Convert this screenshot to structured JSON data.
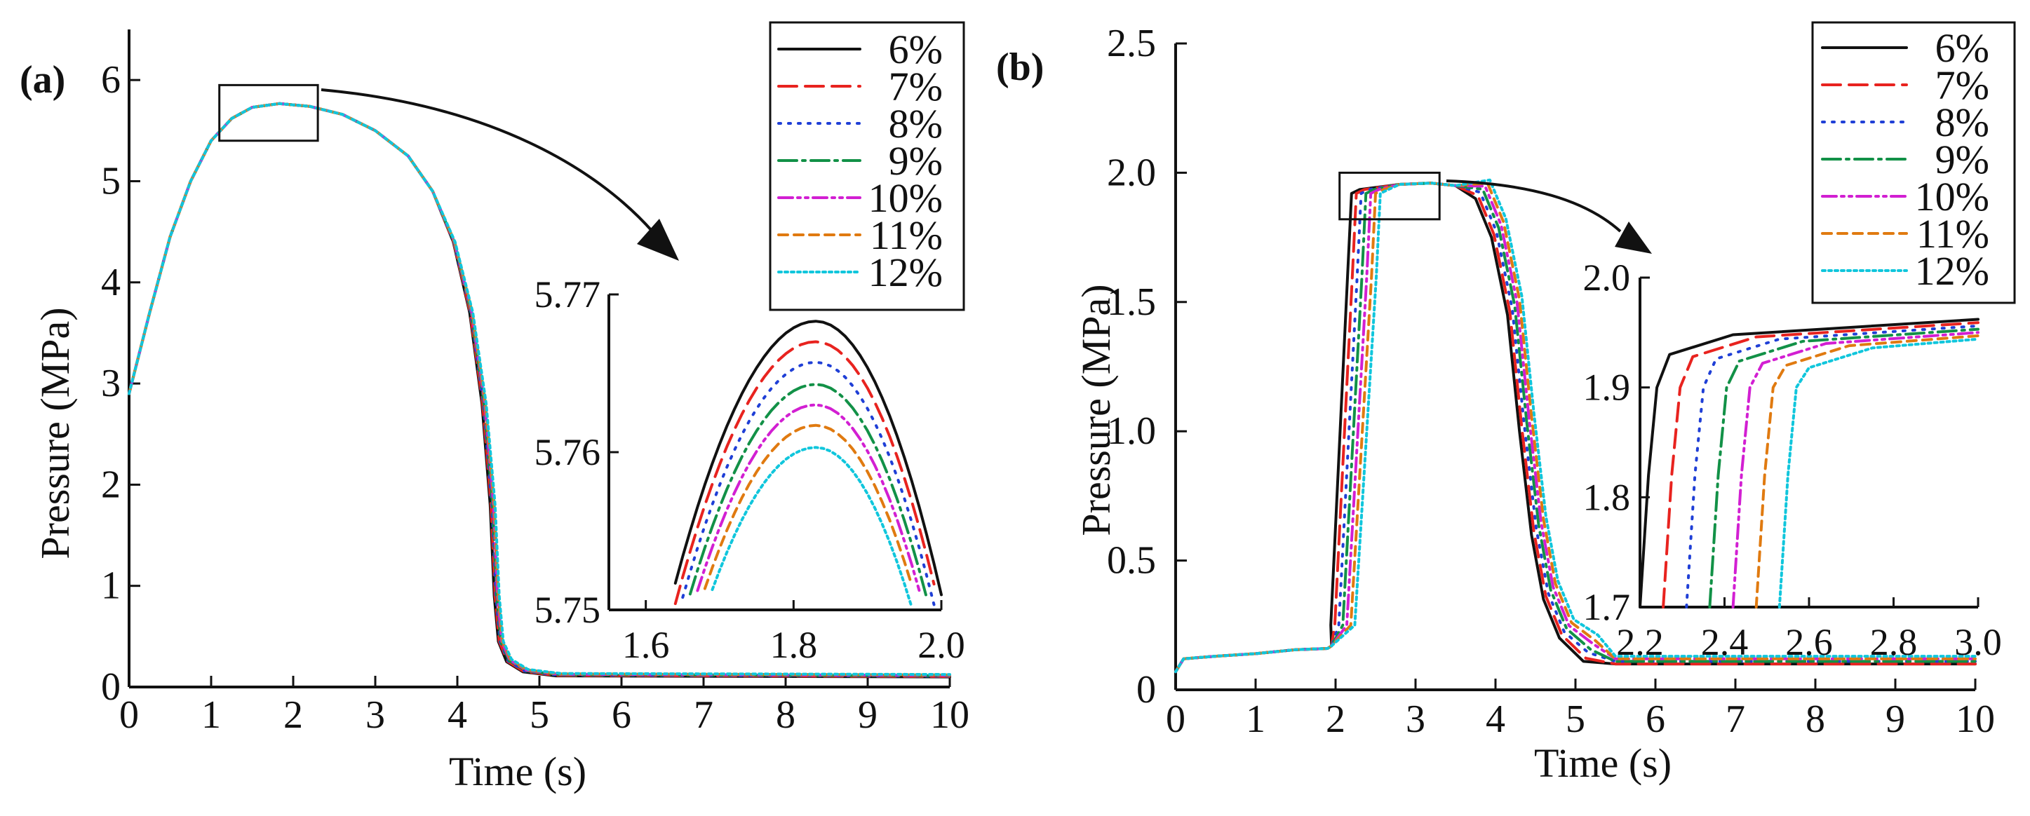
{
  "colors": {
    "6%": "#111111",
    "7%": "#e8231f",
    "8%": "#1f3fd6",
    "9%": "#129147",
    "10%": "#d21fd2",
    "11%": "#e07a10",
    "12%": "#10c6dc"
  },
  "chart_data": [
    {
      "type": "line",
      "panel_label": "(a)",
      "title": "",
      "xlabel": "Time (s)",
      "ylabel": "Pressure (MPa)",
      "xlim": [
        0,
        10
      ],
      "ylim": [
        0,
        6.5
      ],
      "x_ticks": [
        "0",
        "1",
        "2",
        "3",
        "4",
        "5",
        "6",
        "7",
        "8",
        "9",
        "10"
      ],
      "y_ticks": [
        "0",
        "1",
        "2",
        "3",
        "4",
        "5",
        "6"
      ],
      "legend": {
        "position": "top-right",
        "entries": [
          "6%",
          "7%",
          "8%",
          "9%",
          "10%",
          "11%",
          "12%"
        ]
      },
      "series": [
        {
          "name": "6%",
          "knee": 4.45,
          "final": 0.1
        },
        {
          "name": "7%",
          "knee": 4.46,
          "final": 0.1
        },
        {
          "name": "8%",
          "knee": 4.47,
          "final": 0.1
        },
        {
          "name": "9%",
          "knee": 4.48,
          "final": 0.1
        },
        {
          "name": "10%",
          "knee": 4.49,
          "final": 0.1
        },
        {
          "name": "11%",
          "knee": 4.5,
          "final": 0.1
        },
        {
          "name": "12%",
          "knee": 4.51,
          "final": 0.1
        }
      ],
      "profile_points": [
        [
          0,
          2.9
        ],
        [
          0.25,
          3.7
        ],
        [
          0.5,
          4.45
        ],
        [
          0.75,
          5.0
        ],
        [
          1.0,
          5.4
        ],
        [
          1.25,
          5.62
        ],
        [
          1.5,
          5.73
        ],
        [
          1.83,
          5.767
        ],
        [
          2.2,
          5.74
        ],
        [
          2.6,
          5.66
        ],
        [
          3.0,
          5.5
        ],
        [
          3.4,
          5.25
        ],
        [
          3.7,
          4.9
        ],
        [
          3.95,
          4.4
        ],
        [
          4.15,
          3.7
        ],
        [
          4.3,
          2.8
        ],
        [
          4.4,
          1.8
        ],
        [
          4.45,
          0.9
        ],
        [
          4.5,
          0.45
        ],
        [
          4.6,
          0.25
        ],
        [
          4.8,
          0.15
        ],
        [
          5.2,
          0.11
        ],
        [
          10,
          0.1
        ]
      ],
      "zoom_box": {
        "x_range": [
          1.1,
          2.3
        ],
        "y_range": [
          5.4,
          5.95
        ]
      },
      "inset": {
        "xlim": [
          1.55,
          2.0
        ],
        "ylim": [
          5.75,
          5.77
        ],
        "x_ticks": [
          "1.6",
          "1.8",
          "2.0"
        ],
        "y_ticks": [
          "5.75",
          "5.76",
          "5.77"
        ],
        "peaks": [
          {
            "name": "6%",
            "peak": 5.7683
          },
          {
            "name": "7%",
            "peak": 5.767
          },
          {
            "name": "8%",
            "peak": 5.7657
          },
          {
            "name": "9%",
            "peak": 5.7643
          },
          {
            "name": "10%",
            "peak": 5.763
          },
          {
            "name": "11%",
            "peak": 5.7617
          },
          {
            "name": "12%",
            "peak": 5.7603
          }
        ],
        "peak_time": 1.83
      }
    },
    {
      "type": "line",
      "panel_label": "(b)",
      "title": "",
      "xlabel": "Time (s)",
      "ylabel": "Pressure (MPa)",
      "xlim": [
        0,
        10
      ],
      "ylim": [
        0,
        2.5
      ],
      "x_ticks": [
        "0",
        "1",
        "2",
        "3",
        "4",
        "5",
        "6",
        "7",
        "8",
        "9",
        "10"
      ],
      "y_ticks": [
        "0",
        "0.5",
        "1.0",
        "1.5",
        "2.0",
        "2.5"
      ],
      "legend": {
        "position": "top-right",
        "entries": [
          "6%",
          "7%",
          "8%",
          "9%",
          "10%",
          "11%",
          "12%"
        ]
      },
      "series": [
        {
          "name": "6%",
          "rise": 2.2,
          "final": 0.1
        },
        {
          "name": "7%",
          "rise": 2.26,
          "final": 0.1
        },
        {
          "name": "8%",
          "rise": 2.32,
          "final": 0.11
        },
        {
          "name": "9%",
          "rise": 2.38,
          "final": 0.11
        },
        {
          "name": "10%",
          "rise": 2.44,
          "final": 0.12
        },
        {
          "name": "11%",
          "rise": 2.5,
          "final": 0.12
        },
        {
          "name": "12%",
          "rise": 2.56,
          "final": 0.13
        }
      ],
      "zoom_box": {
        "x_range": [
          2.05,
          3.3
        ],
        "y_range": [
          1.82,
          2.0
        ]
      },
      "inset": {
        "xlim": [
          2.2,
          3.0
        ],
        "ylim": [
          1.7,
          2.0
        ],
        "x_ticks": [
          "2.2",
          "2.4",
          "2.6",
          "2.8",
          "3.0"
        ],
        "y_ticks": [
          "1.7",
          "1.8",
          "1.9",
          "2.0"
        ],
        "plateau": 1.962
      }
    }
  ]
}
